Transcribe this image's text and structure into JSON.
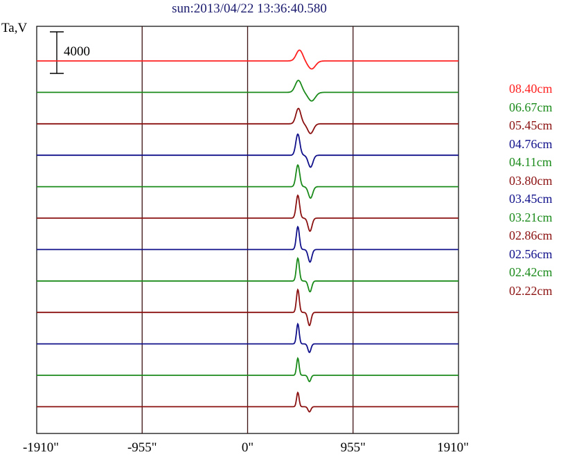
{
  "title": "sun:2013/04/22 13:36:40.580",
  "chart_data": {
    "type": "line",
    "title": "sun:2013/04/22 13:36:40.580",
    "ylabel": "Ta,V",
    "scale_bar_label": "4000",
    "scale_bar_value": 4000,
    "x_ticks": [
      -1910,
      -955,
      0,
      955,
      1910
    ],
    "x_tick_labels": [
      "-1910\"",
      "-955\"",
      "0\"",
      "955\"",
      "1910\""
    ],
    "xlim": [
      -1910,
      1910
    ],
    "grid_vertical": true,
    "legend_position": "right",
    "series": [
      {
        "name": "08.40cm",
        "color": "#ff2020",
        "peak": 1900,
        "trough": -1400,
        "peak_x": 470,
        "trough_x": 580,
        "width": 42
      },
      {
        "name": "06.67cm",
        "color": "#1a8a1a",
        "peak": 2100,
        "trough": -1500,
        "peak_x": 460,
        "trough_x": 580,
        "width": 40
      },
      {
        "name": "05.45cm",
        "color": "#8b1010",
        "peak": 2700,
        "trough": -1700,
        "peak_x": 460,
        "trough_x": 570,
        "width": 32
      },
      {
        "name": "04.76cm",
        "color": "#10108b",
        "peak": 3700,
        "trough": -2100,
        "peak_x": 455,
        "trough_x": 570,
        "width": 26
      },
      {
        "name": "04.11cm",
        "color": "#1a8a1a",
        "peak": 3800,
        "trough": -2000,
        "peak_x": 455,
        "trough_x": 570,
        "width": 24
      },
      {
        "name": "03.80cm",
        "color": "#8b1010",
        "peak": 4000,
        "trough": -2300,
        "peak_x": 455,
        "trough_x": 565,
        "width": 22
      },
      {
        "name": "03.45cm",
        "color": "#10108b",
        "peak": 4000,
        "trough": -2200,
        "peak_x": 455,
        "trough_x": 565,
        "width": 20
      },
      {
        "name": "03.21cm",
        "color": "#1a8a1a",
        "peak": 4000,
        "trough": -1900,
        "peak_x": 455,
        "trough_x": 565,
        "width": 19
      },
      {
        "name": "02.86cm",
        "color": "#8b1010",
        "peak": 4000,
        "trough": -2300,
        "peak_x": 455,
        "trough_x": 560,
        "width": 18
      },
      {
        "name": "02.56cm",
        "color": "#10108b",
        "peak": 3500,
        "trough": -1500,
        "peak_x": 455,
        "trough_x": 560,
        "width": 17
      },
      {
        "name": "02.42cm",
        "color": "#1a8a1a",
        "peak": 3000,
        "trough": -1100,
        "peak_x": 455,
        "trough_x": 560,
        "width": 16
      },
      {
        "name": "02.22cm",
        "color": "#8b1010",
        "peak": 2500,
        "trough": -900,
        "peak_x": 455,
        "trough_x": 560,
        "width": 16
      }
    ]
  }
}
